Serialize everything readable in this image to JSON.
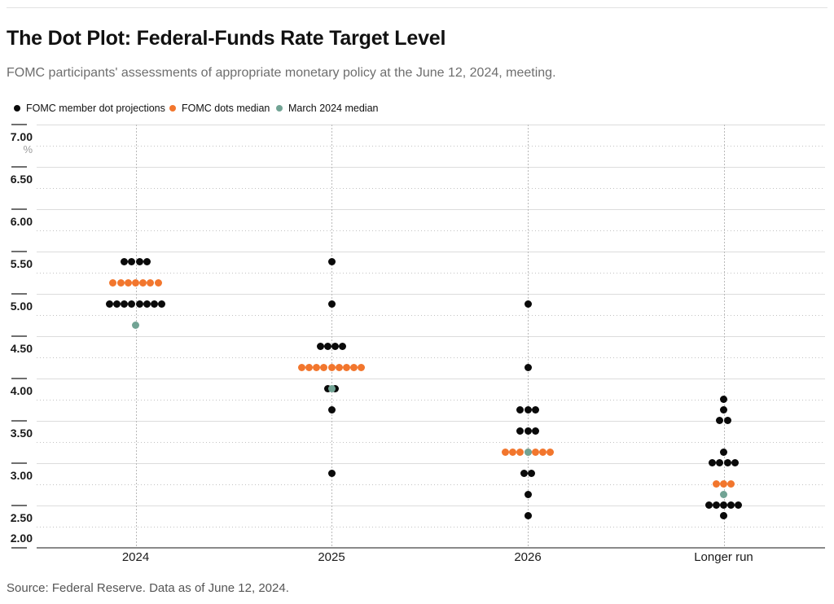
{
  "header": {
    "title": "The Dot Plot: Federal-Funds Rate Target Level",
    "subtitle": "FOMC participants' assessments of appropriate monetary policy at the June 12, 2024, meeting."
  },
  "legend": [
    {
      "label": "FOMC member dot projections",
      "color": "#0a0a0a"
    },
    {
      "label": "FOMC dots median",
      "color": "#f2762d"
    },
    {
      "label": "March 2024 median",
      "color": "#71a394"
    }
  ],
  "footer": {
    "source": "Source: Federal Reserve. Data as of June 12, 2024."
  },
  "chart_data": {
    "type": "scatter",
    "title": "The Dot Plot: Federal-Funds Rate Target Level",
    "xlabel": "",
    "ylabel": "%",
    "ylim": [
      2.0,
      7.0
    ],
    "y_major_step": 0.5,
    "y_minor_step": 0.25,
    "grid": "major solid, minor dotted, dotted vertical line per category",
    "legend_position": "top-left above plot",
    "y_ticks": [
      "7.00",
      "6.50",
      "6.00",
      "5.50",
      "5.00",
      "4.50",
      "4.00",
      "3.50",
      "3.00",
      "2.50",
      "2.00"
    ],
    "categories": [
      "2024",
      "2025",
      "2026",
      "Longer run"
    ],
    "dot_colors": {
      "projection": "#0a0a0a",
      "june_median": "#f2762d",
      "march_median": "#71a394"
    },
    "columns": [
      {
        "label": "2024",
        "projections": [
          {
            "rate": 5.375,
            "count": 4
          },
          {
            "rate": 4.875,
            "count": 8
          }
        ],
        "june_median": {
          "rate": 5.125,
          "count": 7
        },
        "march_median": {
          "rate": 4.625,
          "overlaps": null
        }
      },
      {
        "label": "2025",
        "projections": [
          {
            "rate": 5.375,
            "count": 1
          },
          {
            "rate": 4.875,
            "count": 1
          },
          {
            "rate": 4.375,
            "count": 4
          },
          {
            "rate": 3.875,
            "count": 2
          },
          {
            "rate": 3.625,
            "count": 1
          },
          {
            "rate": 2.875,
            "count": 1
          }
        ],
        "june_median": {
          "rate": 4.125,
          "count": 9
        },
        "march_median": {
          "rate": 3.875,
          "overlaps": "projection row at 3.875"
        }
      },
      {
        "label": "2026",
        "projections": [
          {
            "rate": 4.875,
            "count": 1
          },
          {
            "rate": 4.125,
            "count": 1
          },
          {
            "rate": 3.625,
            "count": 3
          },
          {
            "rate": 3.375,
            "count": 3
          },
          {
            "rate": 2.875,
            "count": 2
          },
          {
            "rate": 2.625,
            "count": 1
          },
          {
            "rate": 2.375,
            "count": 1
          }
        ],
        "june_median": {
          "rate": 3.125,
          "count": 7
        },
        "march_median": {
          "rate": 3.125,
          "overlaps": "center of june median row"
        }
      },
      {
        "label": "Longer run",
        "projections": [
          {
            "rate": 3.75,
            "count": 1
          },
          {
            "rate": 3.625,
            "count": 1
          },
          {
            "rate": 3.5,
            "count": 2
          },
          {
            "rate": 3.125,
            "count": 1
          },
          {
            "rate": 3.0,
            "count": 4
          },
          {
            "rate": 2.5,
            "count": 5
          },
          {
            "rate": 2.375,
            "count": 1
          }
        ],
        "june_median": {
          "rate": 2.75,
          "count": 3
        },
        "march_median": {
          "rate": 2.625,
          "overlaps": null
        }
      }
    ]
  }
}
